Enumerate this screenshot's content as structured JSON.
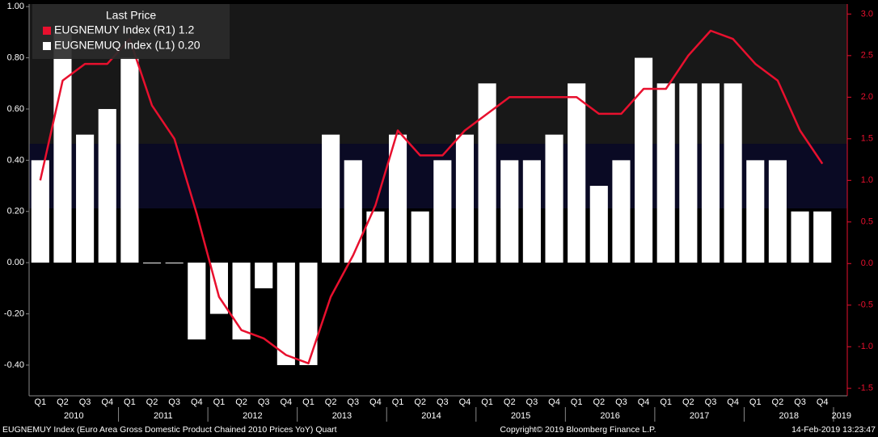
{
  "chart_data": {
    "type": "bar_line",
    "legend_title": "Last Price",
    "categories": [
      "Q1",
      "Q2",
      "Q3",
      "Q4",
      "Q1",
      "Q2",
      "Q3",
      "Q4",
      "Q1",
      "Q2",
      "Q3",
      "Q4",
      "Q1",
      "Q2",
      "Q3",
      "Q4",
      "Q1",
      "Q2",
      "Q3",
      "Q4",
      "Q1",
      "Q2",
      "Q3",
      "Q4",
      "Q1",
      "Q2",
      "Q3",
      "Q4",
      "Q1",
      "Q2",
      "Q3",
      "Q4",
      "Q1",
      "Q2",
      "Q3",
      "Q4"
    ],
    "year_labels": [
      "2010",
      "2011",
      "2012",
      "2013",
      "2014",
      "2015",
      "2016",
      "2017",
      "2018",
      "2019"
    ],
    "series": [
      {
        "name": "EUGNEMUY Index  (R1) 1.2",
        "color": "#e8102e",
        "axis": "y2",
        "values": [
          1.0,
          2.2,
          2.4,
          2.4,
          2.7,
          1.9,
          1.5,
          0.6,
          -0.4,
          -0.8,
          -0.9,
          -1.1,
          -1.2,
          -0.4,
          0.1,
          0.7,
          1.6,
          1.3,
          1.3,
          1.6,
          1.8,
          2.0,
          2.0,
          2.0,
          2.0,
          1.8,
          1.8,
          2.1,
          2.1,
          2.5,
          2.8,
          2.7,
          2.4,
          2.2,
          1.6,
          1.2
        ]
      },
      {
        "name": "EUGNEMUQ Index  (L1) 0.20",
        "color": "#ffffff",
        "values": [
          0.4,
          0.9,
          0.5,
          0.6,
          0.8,
          0.0,
          0.0,
          -0.3,
          -0.2,
          -0.3,
          -0.1,
          -0.4,
          -0.4,
          0.5,
          0.4,
          0.2,
          0.5,
          0.2,
          0.4,
          0.5,
          0.7,
          0.4,
          0.4,
          0.5,
          0.7,
          0.3,
          0.4,
          0.8,
          0.7,
          0.7,
          0.7,
          0.7,
          0.4,
          0.4,
          0.2,
          0.2
        ]
      }
    ],
    "ylim": [
      -0.52,
      1.01
    ],
    "yticks": [
      {
        "value": 1.0,
        "label": "1.00"
      },
      {
        "value": 0.8,
        "label": "0.80"
      },
      {
        "value": 0.6,
        "label": "0.60"
      },
      {
        "value": 0.4,
        "label": "0.40"
      },
      {
        "value": 0.2,
        "label": "0.20"
      },
      {
        "value": 0,
        "label": "0.00"
      },
      {
        "value": -0.2,
        "label": "-0.20"
      },
      {
        "value": -0.4,
        "label": "-0.40"
      }
    ],
    "y2lim": [
      -1.59,
      3.12
    ],
    "y2ticks": [
      {
        "value": 3.0,
        "label": "3.0"
      },
      {
        "value": 2.5,
        "label": "2.5"
      },
      {
        "value": 2.0,
        "label": "2.0"
      },
      {
        "value": 1.5,
        "label": "1.5"
      },
      {
        "value": 1.0,
        "label": "1.0"
      },
      {
        "value": 0.5,
        "label": "0.5"
      },
      {
        "value": 0,
        "label": "0.0"
      },
      {
        "value": -0.5,
        "label": "-0.5"
      },
      {
        "value": -1.0,
        "label": "-1.0"
      },
      {
        "value": -1.5,
        "label": "-1.5"
      }
    ],
    "legend_position": "upper left",
    "footer_left": "EUGNEMUY Index (Euro Area Gross Domestic Product Chained 2010 Prices YoY)  Quart",
    "footer_center": "Copyright© 2019 Bloomberg Finance L.P.",
    "footer_right": "14-Feb-2019 13:23:47"
  }
}
